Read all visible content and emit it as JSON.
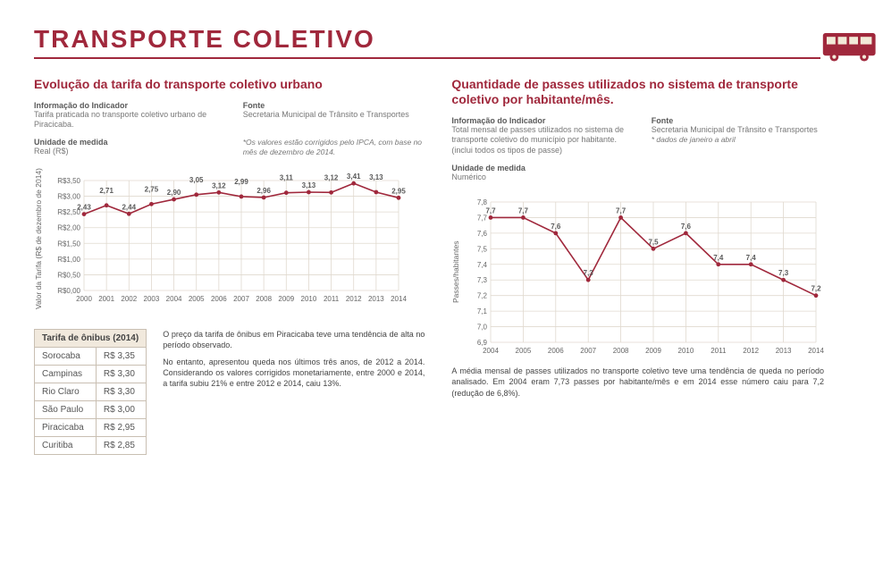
{
  "header": {
    "title": "TRANSPORTE COLETIVO"
  },
  "left": {
    "subtitle": "Evolução da tarifa do transporte coletivo urbano",
    "info_label": "Informação do Indicador",
    "info_text": "Tarifa praticada no transporte coletivo urbano de Piracicaba.",
    "fonte_label": "Fonte",
    "fonte_text": "Secretaria Municipal de Trânsito e Transportes",
    "unidade_label": "Unidade de medida",
    "unidade_text": "Real (R$)",
    "note": "*Os valores estão corrigidos pelo IPCA, com base no mês de dezembro de 2014.",
    "y_axis_title": "Valor da Tarifa\n(R$ de dezembro de 2014)",
    "chart": {
      "years": [
        "2000",
        "2001",
        "2002",
        "2003",
        "2004",
        "2005",
        "2006",
        "2007",
        "2008",
        "2009",
        "2010",
        "2011",
        "2012",
        "2013",
        "2014"
      ],
      "values": [
        2.43,
        2.71,
        2.44,
        2.75,
        2.9,
        3.05,
        3.12,
        2.99,
        2.96,
        3.11,
        3.13,
        3.12,
        3.41,
        3.13,
        2.95
      ],
      "labels": [
        "2,43",
        "2,71",
        "2,44",
        "2,75",
        "2,90",
        "3,05",
        "3,12",
        "2,99",
        "2,96",
        "3,11",
        "3,13",
        "3,12",
        "3,41",
        "3,13",
        "2,95"
      ],
      "y_ticks": [
        "R$0,00",
        "R$0,50",
        "R$1,00",
        "R$1,50",
        "R$2,00",
        "R$2,50",
        "R$3,00",
        "R$3,50"
      ],
      "y_min": 0,
      "y_max": 3.5,
      "y_step": 0.5,
      "line_color": "#a0283c",
      "grid_color": "#e0d9cf",
      "bg_color": "transparent"
    },
    "table_title": "Tarifa de ônibus (2014)",
    "table_rows": [
      {
        "city": "Sorocaba",
        "fare": "R$ 3,35"
      },
      {
        "city": "Campinas",
        "fare": "R$ 3,30"
      },
      {
        "city": "Rio Claro",
        "fare": "R$ 3,30"
      },
      {
        "city": "São Paulo",
        "fare": "R$ 3,00"
      },
      {
        "city": "Piracicaba",
        "fare": "R$ 2,95"
      },
      {
        "city": "Curitiba",
        "fare": "R$ 2,85"
      }
    ],
    "analysis": "O preço da tarifa de ônibus em Piracicaba teve uma tendência de alta no período observado.\n\nNo entanto, apresentou queda nos últimos três anos, de 2012 a 2014. Considerando os valores corrigidos monetariamente, entre 2000 e 2014, a tarifa subiu 21% e entre 2012 e 2014, caiu 13%."
  },
  "right": {
    "subtitle": "Quantidade de passes utilizados no sistema de transporte coletivo por habitante/mês.",
    "info_label": "Informação do Indicador",
    "info_text": "Total mensal de passes utilizados no sistema de transporte coletivo do município por habitante.(inclui todos os tipos de passe)",
    "fonte_label": "Fonte",
    "fonte_text": "Secretaria Municipal de Trânsito e Transportes",
    "fonte_note": "* dados de janeiro a abril",
    "unidade_label": "Unidade de medida",
    "unidade_text": "Numérico",
    "y_axis_title": "Passes/habitantes",
    "chart": {
      "years": [
        "2004",
        "2005",
        "2006",
        "2007",
        "2008",
        "2009",
        "2010",
        "2011",
        "2012",
        "2013",
        "2014"
      ],
      "values": [
        7.7,
        7.7,
        7.6,
        7.3,
        7.7,
        7.5,
        7.6,
        7.4,
        7.4,
        7.3,
        7.2
      ],
      "labels": [
        "7,7",
        "7,7",
        "7,6",
        "7,3",
        "7,7",
        "7,5",
        "7,6",
        "7,4",
        "7,4",
        "7,3",
        "7,2"
      ],
      "y_ticks": [
        "6,9",
        "7,0",
        "7,1",
        "7,2",
        "7,3",
        "7,4",
        "7,5",
        "7,6",
        "7,7",
        "7,8"
      ],
      "y_min": 6.9,
      "y_max": 7.8,
      "y_step": 0.1,
      "line_color": "#a0283c",
      "grid_color": "#e0d9cf"
    },
    "analysis": "A média mensal de passes utilizados no transporte coletivo teve uma tendência de queda no período analisado. Em 2004 eram 7,73 passes por habitante/mês e em 2014 esse número caiu para 7,2 (redução de 6,8%)."
  }
}
